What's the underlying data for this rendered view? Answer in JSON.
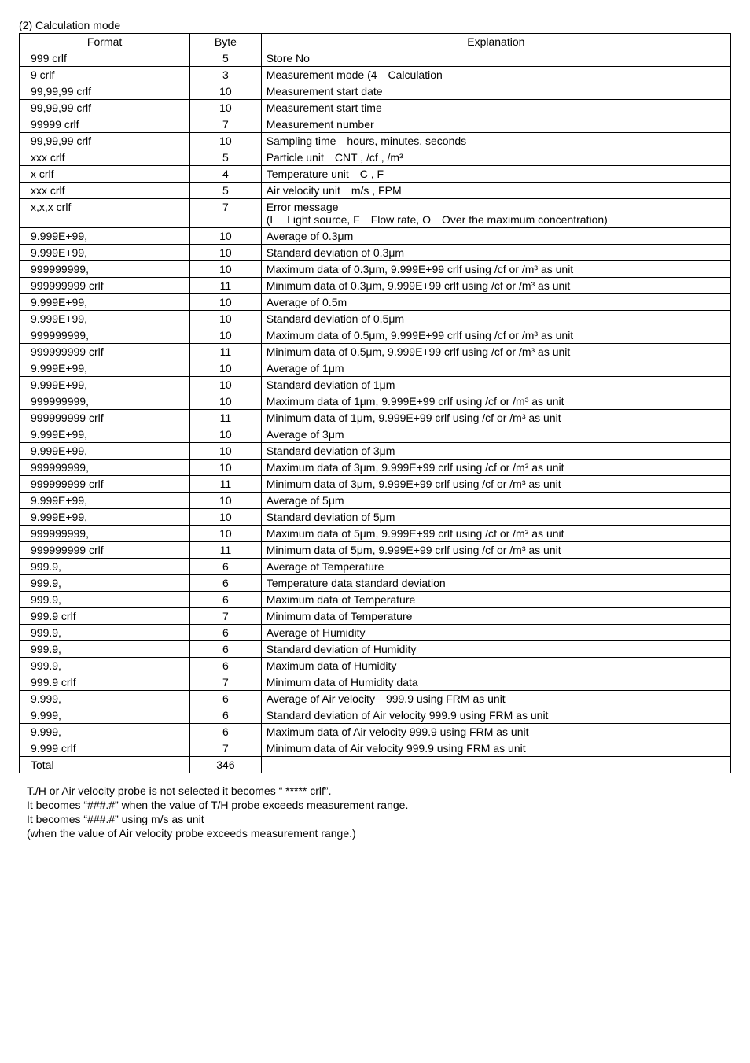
{
  "title": "(2) Calculation mode",
  "headers": {
    "format": "Format",
    "byte": "Byte",
    "explanation": "Explanation"
  },
  "rows": [
    {
      "format": "999 crlf",
      "byte": "5",
      "explanation": "Store No"
    },
    {
      "format": "9 crlf",
      "byte": "3",
      "explanation": "Measurement mode (4 Calculation"
    },
    {
      "format": "99,99,99 crlf",
      "byte": "10",
      "explanation": "Measurement start date"
    },
    {
      "format": "99,99,99 crlf",
      "byte": "10",
      "explanation": "Measurement start time"
    },
    {
      "format": "99999 crlf",
      "byte": "7",
      "explanation": "Measurement number"
    },
    {
      "format": "99,99,99 crlf",
      "byte": "10",
      "explanation": "Sampling time hours, minutes, seconds"
    },
    {
      "format": "xxx crlf",
      "byte": "5",
      "explanation": "Particle unit CNT , /cf , /m³"
    },
    {
      "format": "x crlf",
      "byte": "4",
      "explanation": "Temperature unit C , F"
    },
    {
      "format": "xxx crlf",
      "byte": "5",
      "explanation": "Air velocity unit m/s , FPM"
    },
    {
      "format": "x,x,x crlf",
      "byte": "7",
      "explanation": "Error message\n(L Light source, F Flow rate, O Over the maximum concentration)"
    },
    {
      "format": "9.999E+99,",
      "byte": "10",
      "explanation": "Average of 0.3μm"
    },
    {
      "format": "9.999E+99,",
      "byte": "10",
      "explanation": "Standard deviation of 0.3μm"
    },
    {
      "format": "999999999,",
      "byte": "10",
      "explanation": "Maximum data of 0.3μm, 9.999E+99 crlf using /cf or /m³ as unit"
    },
    {
      "format": "999999999 crlf",
      "byte": "11",
      "explanation": "Minimum data of 0.3μm, 9.999E+99 crlf using /cf or /m³ as unit"
    },
    {
      "format": "9.999E+99,",
      "byte": "10",
      "explanation": "Average of 0.5m"
    },
    {
      "format": "9.999E+99,",
      "byte": "10",
      "explanation": "Standard deviation of 0.5μm"
    },
    {
      "format": "999999999,",
      "byte": "10",
      "explanation": "Maximum data of 0.5μm, 9.999E+99 crlf using /cf or /m³ as unit"
    },
    {
      "format": "999999999 crlf",
      "byte": "11",
      "explanation": "Minimum data of 0.5μm, 9.999E+99 crlf using /cf or /m³ as unit"
    },
    {
      "format": "9.999E+99,",
      "byte": "10",
      "explanation": "Average of 1μm"
    },
    {
      "format": "9.999E+99,",
      "byte": "10",
      "explanation": "Standard deviation of 1μm"
    },
    {
      "format": "999999999,",
      "byte": "10",
      "explanation": "Maximum data of 1μm, 9.999E+99 crlf using /cf or /m³ as unit"
    },
    {
      "format": "999999999 crlf",
      "byte": "11",
      "explanation": "Minimum data of 1μm, 9.999E+99 crlf using /cf or /m³ as unit"
    },
    {
      "format": "9.999E+99,",
      "byte": "10",
      "explanation": "Average of 3μm"
    },
    {
      "format": "9.999E+99,",
      "byte": "10",
      "explanation": "Standard deviation of 3μm"
    },
    {
      "format": "999999999,",
      "byte": "10",
      "explanation": "Maximum data of 3μm, 9.999E+99 crlf using /cf or /m³ as unit"
    },
    {
      "format": "999999999 crlf",
      "byte": "11",
      "explanation": "Minimum data of 3μm, 9.999E+99 crlf using /cf or /m³ as unit"
    },
    {
      "format": "9.999E+99,",
      "byte": "10",
      "explanation": "Average of 5μm"
    },
    {
      "format": "9.999E+99,",
      "byte": "10",
      "explanation": "Standard deviation of 5μm"
    },
    {
      "format": "999999999,",
      "byte": "10",
      "explanation": "Maximum data of 5μm, 9.999E+99 crlf using /cf or /m³ as unit"
    },
    {
      "format": "999999999 crlf",
      "byte": "11",
      "explanation": "Minimum data of 5μm, 9.999E+99 crlf using /cf or /m³ as unit"
    },
    {
      "format": "999.9,",
      "byte": "6",
      "explanation": "Average of Temperature"
    },
    {
      "format": "999.9,",
      "byte": "6",
      "explanation": "Temperature data standard deviation"
    },
    {
      "format": "999.9,",
      "byte": "6",
      "explanation": "Maximum data of Temperature"
    },
    {
      "format": "999.9 crlf",
      "byte": "7",
      "explanation": "Minimum data of Temperature"
    },
    {
      "format": "999.9,",
      "byte": "6",
      "explanation": "Average of Humidity"
    },
    {
      "format": "999.9,",
      "byte": "6",
      "explanation": "Standard deviation of Humidity"
    },
    {
      "format": "999.9,",
      "byte": "6",
      "explanation": "Maximum data of Humidity"
    },
    {
      "format": "999.9 crlf",
      "byte": "7",
      "explanation": "Minimum data of Humidity data"
    },
    {
      "format": "9.999,",
      "byte": "6",
      "explanation": "Average of Air velocity 999.9 using FRM as unit"
    },
    {
      "format": "9.999,",
      "byte": "6",
      "explanation": "Standard deviation of Air velocity 999.9 using FRM as unit"
    },
    {
      "format": "9.999,",
      "byte": "6",
      "explanation": "Maximum data of Air velocity 999.9 using FRM as unit"
    },
    {
      "format": "9.999 crlf",
      "byte": "7",
      "explanation": "Minimum data of Air velocity 999.9 using FRM as unit"
    },
    {
      "format": "Total",
      "byte": "346",
      "explanation": ""
    }
  ],
  "notes": [
    "T./H or Air velocity probe is not selected it becomes “ ***** crlf”.",
    "It becomes “###.#” when the value of T/H probe exceeds measurement range.",
    "It becomes “###.#” using m/s as unit",
    "(when the value of Air velocity probe exceeds measurement range.)"
  ]
}
